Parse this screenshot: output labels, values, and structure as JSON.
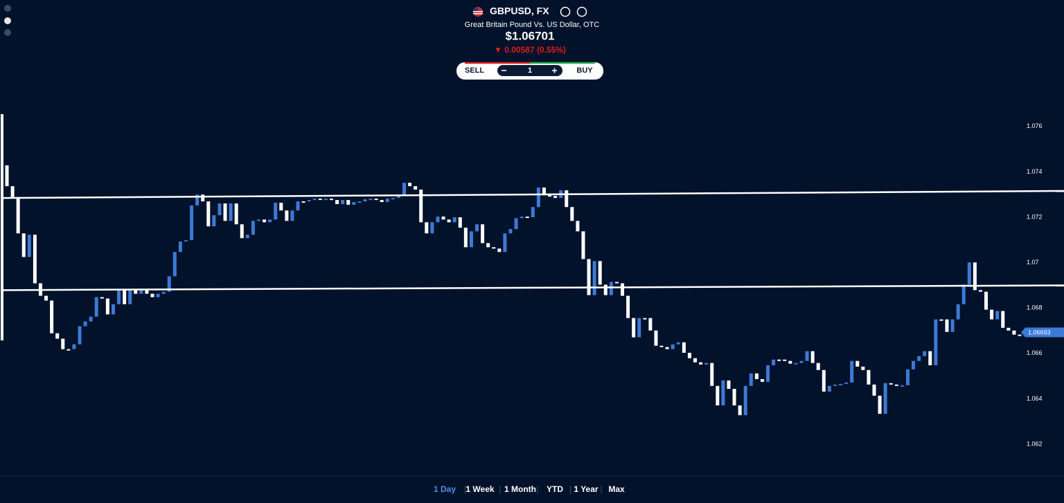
{
  "header": {
    "symbol": "GBPUSD, FX",
    "description": "Great Britain Pound Vs. US Dollar, OTC",
    "price": "$1.06701",
    "change": "▼ 0.00587 (0.55%)"
  },
  "trade": {
    "sell": "SELL",
    "quantity": "1",
    "buy": "BUY"
  },
  "chart_data": {
    "type": "candlestick",
    "up_color": "#3d7ad6",
    "down_color": "#ffffff",
    "ylim": [
      1.0606,
      1.077
    ],
    "yticks": [
      1.076,
      1.074,
      1.072,
      1.07,
      1.068,
      1.066,
      1.064,
      1.062
    ],
    "open": [
      1.07429,
      1.07337,
      1.07285,
      1.07129,
      1.07025,
      1.07123,
      1.06909,
      1.06854,
      1.06833,
      1.06689,
      1.06665,
      1.06619,
      1.06619,
      1.0664,
      1.0672,
      1.06741,
      1.06762,
      1.06848,
      1.06842,
      1.06772,
      1.06817,
      1.06879,
      1.06817,
      1.06879,
      1.06863,
      1.06885,
      1.06863,
      1.06848,
      1.06863,
      1.06872,
      1.0694,
      1.07047,
      1.07093,
      1.07099,
      1.07252,
      1.073,
      1.0727,
      1.0716,
      1.07209,
      1.07261,
      1.07184,
      1.07261,
      1.07169,
      1.07108,
      1.07123,
      1.07184,
      1.0719,
      1.07178,
      1.0719,
      1.07264,
      1.0723,
      1.07184,
      1.0723,
      1.0727,
      1.0727,
      1.07276,
      1.07282,
      1.07276,
      1.07282,
      1.07276,
      1.07258,
      1.07276,
      1.07255,
      1.07267,
      1.0727,
      1.07279,
      1.07282,
      1.07276,
      1.07267,
      1.07282,
      1.07285,
      1.07297,
      1.07352,
      1.07337,
      1.07322,
      1.07178,
      1.07129,
      1.07178,
      1.07203,
      1.0719,
      1.07178,
      1.072,
      1.07154,
      1.07068,
      1.07138,
      1.07169,
      1.07086,
      1.07068,
      1.07062,
      1.07047,
      1.07129,
      1.07148,
      1.07196,
      1.07203,
      1.072,
      1.07245,
      1.07331,
      1.07297,
      1.07294,
      1.07285,
      1.07319,
      1.07245,
      1.07184,
      1.07138,
      1.07016,
      1.06857,
      1.07007,
      1.06903,
      1.06857,
      1.06915,
      1.06909,
      1.06854,
      1.06756,
      1.06671,
      1.06756,
      1.06756,
      1.06701,
      1.06634,
      1.06628,
      1.06619,
      1.0664,
      1.06649,
      1.06603,
      1.06579,
      1.06561,
      1.06551,
      1.06558,
      1.06457,
      1.06371,
      1.06481,
      1.06444,
      1.06371,
      1.06328,
      1.06457,
      1.06512,
      1.06487,
      1.06475,
      1.06548,
      1.06573,
      1.06573,
      1.06567,
      1.06555,
      1.06558,
      1.06567,
      1.0661,
      1.06558,
      1.06527,
      1.06432,
      1.06457,
      1.06463,
      1.06466,
      1.06472,
      1.06567,
      1.06542,
      1.06527,
      1.06463,
      1.06414,
      1.06334,
      1.06469,
      1.06463,
      1.06457,
      1.0646,
      1.0653,
      1.06567,
      1.06588,
      1.0661,
      1.06548,
      1.0675,
      1.0675,
      1.06695,
      1.0675,
      1.06817,
      1.06903,
      1.07001,
      1.06879,
      1.06872,
      1.06793,
      1.0675,
      1.06787,
      1.06713,
      1.06701,
      1.06683
    ],
    "close": [
      1.07337,
      1.07285,
      1.07129,
      1.07025,
      1.07123,
      1.06909,
      1.06854,
      1.06833,
      1.06689,
      1.06665,
      1.06619,
      1.06619,
      1.0664,
      1.0672,
      1.06741,
      1.06762,
      1.06848,
      1.06842,
      1.06772,
      1.06817,
      1.06879,
      1.06817,
      1.06879,
      1.06863,
      1.06885,
      1.06863,
      1.06848,
      1.06863,
      1.06872,
      1.0694,
      1.07047,
      1.07093,
      1.07099,
      1.07252,
      1.073,
      1.0727,
      1.0716,
      1.07209,
      1.07261,
      1.07184,
      1.07261,
      1.07169,
      1.07108,
      1.07123,
      1.07184,
      1.0719,
      1.07178,
      1.0719,
      1.07264,
      1.0723,
      1.07184,
      1.0723,
      1.0727,
      1.0727,
      1.07276,
      1.07282,
      1.07276,
      1.07282,
      1.07276,
      1.07258,
      1.07276,
      1.07255,
      1.07267,
      1.0727,
      1.07279,
      1.07282,
      1.07276,
      1.07267,
      1.07282,
      1.07285,
      1.07297,
      1.07352,
      1.07337,
      1.07322,
      1.07178,
      1.07129,
      1.07178,
      1.07203,
      1.0719,
      1.07178,
      1.072,
      1.07154,
      1.07068,
      1.07138,
      1.07169,
      1.07086,
      1.07068,
      1.07062,
      1.07047,
      1.07129,
      1.07148,
      1.07196,
      1.07203,
      1.072,
      1.07245,
      1.07331,
      1.07297,
      1.07294,
      1.07285,
      1.07319,
      1.07245,
      1.07184,
      1.07138,
      1.07016,
      1.06857,
      1.07007,
      1.06903,
      1.06857,
      1.06915,
      1.06909,
      1.06854,
      1.06756,
      1.06671,
      1.06756,
      1.06756,
      1.06701,
      1.06634,
      1.06628,
      1.06619,
      1.0664,
      1.06649,
      1.06603,
      1.06579,
      1.06561,
      1.06551,
      1.06558,
      1.06457,
      1.06371,
      1.06481,
      1.06444,
      1.06371,
      1.06328,
      1.06457,
      1.06512,
      1.06487,
      1.06475,
      1.06548,
      1.06573,
      1.06573,
      1.06567,
      1.06555,
      1.06558,
      1.06567,
      1.0661,
      1.06558,
      1.06527,
      1.06432,
      1.06457,
      1.06463,
      1.06466,
      1.06472,
      1.06567,
      1.06542,
      1.06527,
      1.06463,
      1.06414,
      1.06334,
      1.06469,
      1.06463,
      1.06457,
      1.0646,
      1.0653,
      1.06567,
      1.06588,
      1.0661,
      1.06548,
      1.0675,
      1.0675,
      1.06695,
      1.0675,
      1.06817,
      1.06903,
      1.07001,
      1.06879,
      1.06872,
      1.06793,
      1.0675,
      1.06787,
      1.06713,
      1.06701,
      1.06683,
      1.06677
    ],
    "lines": [
      {
        "start": 1.07285,
        "end": 1.07316
      },
      {
        "start": 1.06879,
        "end": 1.069
      }
    ],
    "line_color": "#ffffff",
    "last_price": 1.06693,
    "last_price_color": "#3d7ad6"
  },
  "ranges": [
    "1 Day",
    "1 Week",
    "1 Month",
    "YTD",
    "1 Year",
    "Max"
  ],
  "active_range": 0
}
